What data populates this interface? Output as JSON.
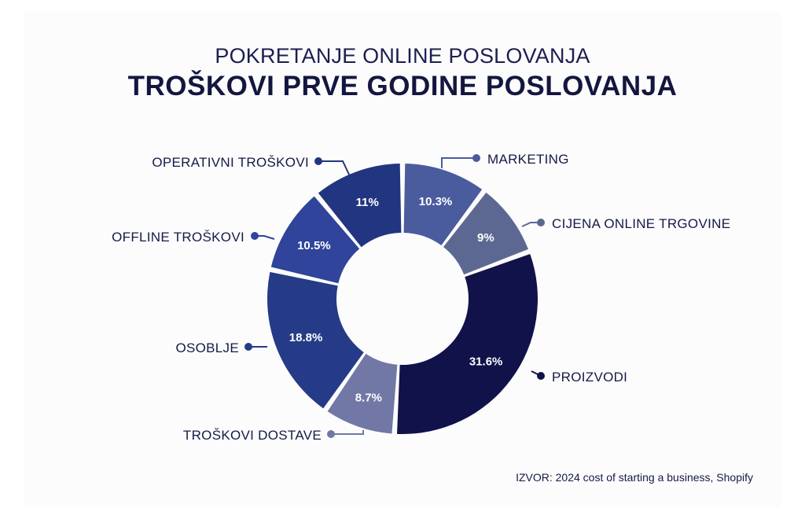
{
  "header": {
    "subtitle": "POKRETANJE ONLINE POSLOVANJA",
    "title": "TROŠKOVI PRVE GODINE POSLOVANJA"
  },
  "source": "IZVOR: 2024 cost of starting a business, Shopify",
  "chart_data": {
    "type": "pie",
    "variant": "donut",
    "title": "TROŠKOVI PRVE GODINE POSLOVANJA",
    "subtitle": "POKRETANJE ONLINE POSLOVANJA",
    "unit": "%",
    "slices": [
      {
        "label": "MARKETING",
        "value": 10.3,
        "display": "10.3%",
        "color": "#4a5b9e"
      },
      {
        "label": "CIJENA ONLINE TRGOVINE",
        "value": 9,
        "display": "9%",
        "color": "#5d6892"
      },
      {
        "label": "PROIZVODI",
        "value": 31.6,
        "display": "31.6%",
        "color": "#11124a"
      },
      {
        "label": "TROŠKOVI DOSTAVE",
        "value": 8.7,
        "display": "8.7%",
        "color": "#7178a6"
      },
      {
        "label": "OSOBLJE",
        "value": 18.8,
        "display": "18.8%",
        "color": "#263b87"
      },
      {
        "label": "OFFLINE TROŠKOVI",
        "value": 10.5,
        "display": "10.5%",
        "color": "#2f449a"
      },
      {
        "label": "OPERATIVNI TROŠKOVI",
        "value": 11,
        "display": "11%",
        "color": "#223580"
      }
    ],
    "legend": "callout labels around the ring"
  }
}
